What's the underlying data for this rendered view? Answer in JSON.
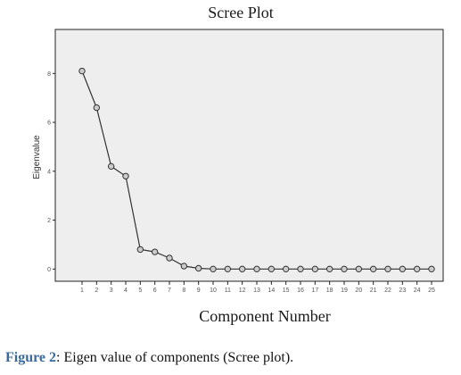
{
  "chart_data": {
    "type": "line",
    "title": "Scree Plot",
    "xlabel": "Component Number",
    "ylabel": "Eigenvalue",
    "x": [
      1,
      2,
      3,
      4,
      5,
      6,
      7,
      8,
      9,
      10,
      11,
      12,
      13,
      14,
      15,
      16,
      17,
      18,
      19,
      20,
      21,
      22,
      23,
      24,
      25
    ],
    "y": [
      8.1,
      6.6,
      4.2,
      3.8,
      0.8,
      0.7,
      0.45,
      0.12,
      0.03,
      0.0,
      0.0,
      0.0,
      0.0,
      0.0,
      0.0,
      0.0,
      0.0,
      0.0,
      0.0,
      0.0,
      0.0,
      0.0,
      0.0,
      0.0,
      0.0
    ],
    "y_ticks": [
      0,
      2,
      4,
      6,
      8
    ],
    "ylim": [
      -0.5,
      9.8
    ],
    "grid": false,
    "colors": {
      "plot_background": "#eeeeee",
      "line": "#333333",
      "marker_fill": "#cccccc"
    }
  },
  "caption": {
    "label": "Figure 2",
    "text": ": Eigen value of components (Scree plot)."
  }
}
